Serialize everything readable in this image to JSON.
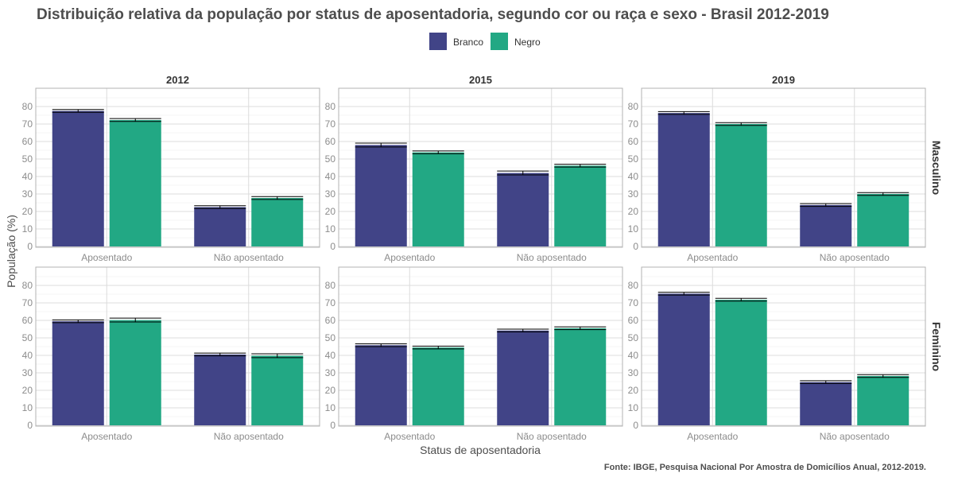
{
  "chart_data": {
    "type": "bar",
    "title": "Distribuição relativa da população por status de aposentadoria, segundo cor ou raça e sexo - Brasil 2012-2019",
    "xlabel": "Status de aposentadoria",
    "ylabel": "População (%)",
    "caption": "Fonte: IBGE, Pesquisa Nacional Por Amostra de Domicílios Anual, 2012-2019.",
    "categories": [
      "Aposentado",
      "Não aposentado"
    ],
    "series_names": [
      "Branco",
      "Negro"
    ],
    "legend_position": "top",
    "ylim": [
      0,
      90
    ],
    "yticks": [
      0,
      10,
      20,
      30,
      40,
      50,
      60,
      70,
      80
    ],
    "ytick_labels": [
      "0",
      "10",
      "20",
      "30",
      "40",
      "50",
      "60",
      "70",
      "80"
    ],
    "grid": true,
    "column_facets": [
      "2012",
      "2015",
      "2019"
    ],
    "row_facets": [
      "Masculino",
      "Feminino"
    ],
    "colors": {
      "Branco": "#414487",
      "Negro": "#22a884",
      "error_bar": "#000000"
    },
    "panels": [
      {
        "year": "2012",
        "sexo": "Masculino",
        "series": [
          {
            "name": "Branco",
            "values": [
              77.5,
              22.5
            ],
            "lower": [
              76.7,
              21.7
            ],
            "upper": [
              78.3,
              23.3
            ]
          },
          {
            "name": "Negro",
            "values": [
              72.3,
              27.7
            ],
            "lower": [
              71.5,
              26.9
            ],
            "upper": [
              73.1,
              28.5
            ]
          }
        ]
      },
      {
        "year": "2015",
        "sexo": "Masculino",
        "series": [
          {
            "name": "Branco",
            "values": [
              58.0,
              42.0
            ],
            "lower": [
              56.9,
              40.9
            ],
            "upper": [
              59.1,
              43.1
            ]
          },
          {
            "name": "Negro",
            "values": [
              53.8,
              46.2
            ],
            "lower": [
              53.0,
              45.4
            ],
            "upper": [
              54.6,
              47.0
            ]
          }
        ]
      },
      {
        "year": "2019",
        "sexo": "Masculino",
        "series": [
          {
            "name": "Branco",
            "values": [
              76.3,
              23.7
            ],
            "lower": [
              75.5,
              22.9
            ],
            "upper": [
              77.1,
              24.5
            ]
          },
          {
            "name": "Negro",
            "values": [
              70.0,
              30.0
            ],
            "lower": [
              69.2,
              29.2
            ],
            "upper": [
              70.8,
              30.8
            ]
          }
        ]
      },
      {
        "year": "2012",
        "sexo": "Feminino",
        "series": [
          {
            "name": "Branco",
            "values": [
              59.5,
              40.5
            ],
            "lower": [
              58.7,
              39.7
            ],
            "upper": [
              60.3,
              41.3
            ]
          },
          {
            "name": "Negro",
            "values": [
              60.2,
              39.8
            ],
            "lower": [
              59.1,
              38.7
            ],
            "upper": [
              61.3,
              40.9
            ]
          }
        ]
      },
      {
        "year": "2015",
        "sexo": "Feminino",
        "series": [
          {
            "name": "Branco",
            "values": [
              45.8,
              54.2
            ],
            "lower": [
              45.0,
              53.4
            ],
            "upper": [
              46.6,
              55.0
            ]
          },
          {
            "name": "Negro",
            "values": [
              44.5,
              55.5
            ],
            "lower": [
              43.7,
              54.7
            ],
            "upper": [
              45.3,
              56.3
            ]
          }
        ]
      },
      {
        "year": "2019",
        "sexo": "Feminino",
        "series": [
          {
            "name": "Branco",
            "values": [
              75.3,
              24.7
            ],
            "lower": [
              74.5,
              23.9
            ],
            "upper": [
              76.1,
              25.5
            ]
          },
          {
            "name": "Negro",
            "values": [
              71.8,
              28.2
            ],
            "lower": [
              71.0,
              27.4
            ],
            "upper": [
              72.6,
              29.0
            ]
          }
        ]
      }
    ]
  }
}
